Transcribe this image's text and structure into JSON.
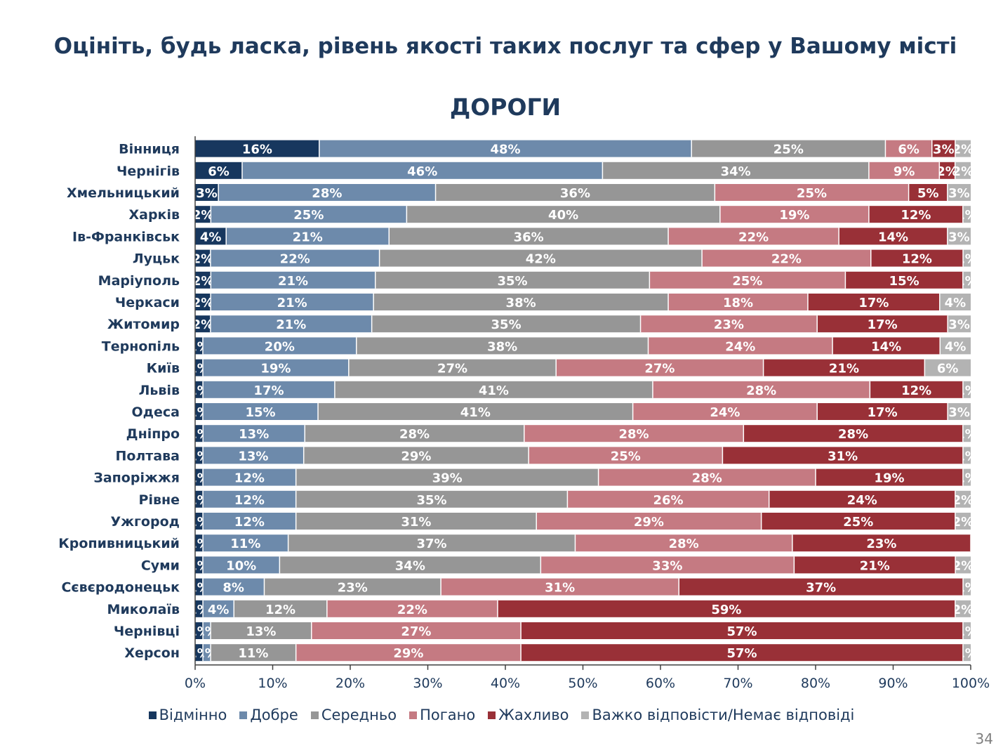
{
  "page_title": "Оцініть, будь ласка, рівень якості таких послуг та сфер у Вашому місті",
  "page_number": "34",
  "chart_data": {
    "type": "bar",
    "orientation": "horizontal",
    "stacked": "percent",
    "title": "ДОРОГИ",
    "xlabel": "",
    "ylabel": "",
    "xlim": [
      0,
      100
    ],
    "x_ticks": [
      "0%",
      "10%",
      "20%",
      "30%",
      "40%",
      "50%",
      "60%",
      "70%",
      "80%",
      "90%",
      "100%"
    ],
    "legend_position": "bottom",
    "categories": [
      "Вінниця",
      "Чернігів",
      "Хмельницький",
      "Харків",
      "Ів-Франківськ",
      "Луцьк",
      "Маріуполь",
      "Черкаси",
      "Житомир",
      "Тернопіль",
      "Київ",
      "Львів",
      "Одеса",
      "Дніпро",
      "Полтава",
      "Запоріжжя",
      "Рівне",
      "Ужгород",
      "Кропивницький",
      "Суми",
      "Сєвєродонецьк",
      "Миколаїв",
      "Чернівці",
      "Херсон"
    ],
    "series": [
      {
        "name": "Відмінно",
        "color": "#17375e",
        "values": [
          16,
          6,
          3,
          2,
          4,
          2,
          2,
          2,
          2,
          1,
          1,
          1,
          1,
          1,
          1,
          1,
          1,
          1,
          1,
          1,
          1,
          1,
          1,
          1
        ]
      },
      {
        "name": "Добре",
        "color": "#6d8aab",
        "values": [
          48,
          46,
          28,
          25,
          21,
          22,
          21,
          21,
          21,
          20,
          19,
          17,
          15,
          13,
          13,
          12,
          12,
          12,
          11,
          10,
          8,
          4,
          1,
          1
        ]
      },
      {
        "name": "Середньо",
        "color": "#969696",
        "values": [
          25,
          34,
          36,
          40,
          36,
          42,
          35,
          38,
          35,
          38,
          27,
          41,
          41,
          28,
          29,
          39,
          35,
          31,
          37,
          34,
          23,
          12,
          13,
          11
        ]
      },
      {
        "name": "Погано",
        "color": "#c57a82",
        "values": [
          6,
          9,
          25,
          19,
          22,
          22,
          25,
          18,
          23,
          24,
          27,
          28,
          24,
          28,
          25,
          28,
          26,
          29,
          28,
          33,
          31,
          22,
          27,
          29
        ]
      },
      {
        "name": "Жахливо",
        "color": "#993037",
        "values": [
          3,
          2,
          5,
          12,
          14,
          12,
          15,
          17,
          17,
          14,
          21,
          12,
          17,
          28,
          31,
          19,
          24,
          25,
          23,
          21,
          37,
          59,
          57,
          57
        ]
      },
      {
        "name": "Важко відповісти/Немає відповіді",
        "color": "#b3b3b3",
        "values": [
          2,
          2,
          3,
          1,
          3,
          1,
          1,
          4,
          3,
          4,
          6,
          1,
          3,
          1,
          1,
          1,
          2,
          2,
          0,
          2,
          1,
          2,
          1,
          1
        ]
      }
    ]
  }
}
